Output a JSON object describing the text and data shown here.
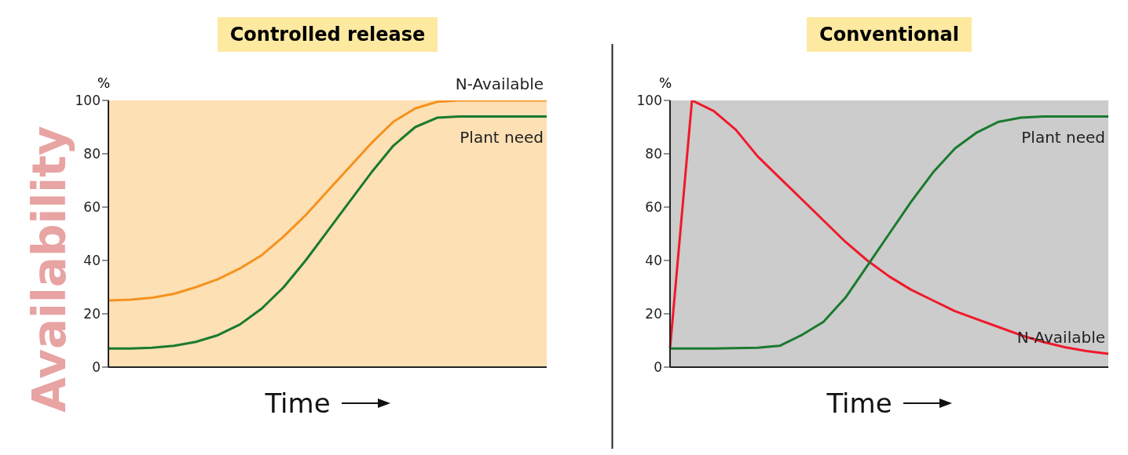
{
  "chart_data": [
    {
      "type": "line",
      "title": "Controlled release",
      "xlabel": "Time",
      "ylabel": "%",
      "annotations": [
        "Availability"
      ],
      "categories": [
        null,
        null,
        null,
        null,
        null,
        null,
        null,
        null,
        null,
        null,
        null,
        null,
        null,
        null,
        null,
        null,
        null,
        null,
        null,
        null,
        null
      ],
      "series": [
        {
          "name": "N-Available",
          "color": "#f5921e",
          "values": [
            25,
            25.3,
            26,
            27.5,
            30,
            33,
            37,
            42,
            49,
            57,
            66,
            75,
            84,
            92,
            97,
            99.5,
            100,
            100,
            100,
            100,
            100
          ]
        },
        {
          "name": "Plant need",
          "color": "#1a7a2e",
          "values": [
            7,
            7,
            7.3,
            8,
            9.5,
            12,
            16,
            22,
            30,
            40,
            51,
            62,
            73,
            83,
            90,
            93.5,
            94,
            94,
            94,
            94,
            94
          ]
        }
      ],
      "ylim": [
        0,
        100
      ],
      "yticks": [
        0,
        20,
        40,
        60,
        80,
        100
      ],
      "bands": [
        {
          "axis": "y",
          "from": 0,
          "to": 100,
          "color": "#fde0b4"
        }
      ],
      "grid": false,
      "legend": false,
      "marker": "none",
      "line_style": "solid"
    },
    {
      "type": "line",
      "title": "Conventional",
      "xlabel": "Time",
      "ylabel": "%",
      "categories": [
        null,
        null,
        null,
        null,
        null,
        null,
        null,
        null,
        null,
        null,
        null,
        null,
        null,
        null,
        null,
        null,
        null,
        null,
        null,
        null,
        null
      ],
      "series": [
        {
          "name": "N-Available",
          "color": "#f0192a",
          "values": [
            7,
            100,
            96,
            89,
            79,
            71,
            63,
            55,
            47,
            40,
            34,
            29,
            25,
            21,
            18,
            15,
            12,
            9.5,
            7.5,
            6,
            5
          ]
        },
        {
          "name": "Plant need",
          "color": "#1a7a2e",
          "values": [
            7,
            7,
            7,
            7.1,
            7.3,
            8,
            12,
            17,
            26,
            38,
            50,
            62,
            73,
            82,
            88,
            92,
            93.5,
            94,
            94,
            94,
            94
          ]
        }
      ],
      "ylim": [
        0,
        100
      ],
      "yticks": [
        0,
        20,
        40,
        60,
        80,
        100
      ],
      "bands": [
        {
          "axis": "y",
          "from": 0,
          "to": 100,
          "color": "#cccccc"
        }
      ],
      "grid": false,
      "legend": false,
      "marker": "none",
      "line_style": "solid"
    }
  ]
}
